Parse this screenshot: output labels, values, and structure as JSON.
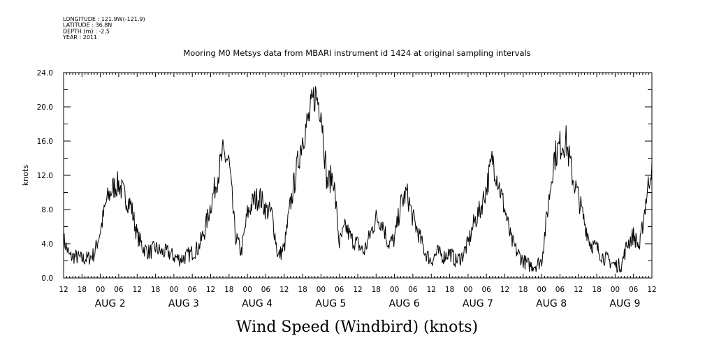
{
  "header": {
    "lines": [
      "LONGITUDE : 121.9W(-121.9)",
      "LATITUDE : 36.8N",
      "DEPTH (m) : -2.5",
      "YEAR : 2011"
    ]
  },
  "colors": {
    "line": "#000000",
    "background": "#ffffff"
  },
  "chart_data": {
    "type": "line",
    "title": "Mooring M0 Metsys data from MBARI instrument id 1424 at original sampling intervals",
    "xlabel": "Wind Speed (Windbird) (knots)",
    "ylabel": "knots",
    "ylim": [
      0,
      24
    ],
    "yticks": [
      "0.0",
      "4.0",
      "8.0",
      "12.0",
      "16.0",
      "20.0",
      "24.0"
    ],
    "x_unit": "hours since AUG 1 12:00 (2011)",
    "xlim": [
      0,
      192
    ],
    "xticks_hours": [
      "12",
      "18",
      "00",
      "06",
      "12",
      "18",
      "00",
      "06",
      "12",
      "18",
      "00",
      "06",
      "12",
      "18",
      "00",
      "06",
      "12",
      "18",
      "00",
      "06",
      "12",
      "18",
      "00",
      "06",
      "12",
      "18",
      "00",
      "06",
      "12",
      "18",
      "00",
      "06",
      "12"
    ],
    "date_labels": [
      "AUG  2",
      "AUG  3",
      "AUG  4",
      "AUG  5",
      "AUG  6",
      "AUG  7",
      "AUG  8",
      "AUG  9"
    ],
    "grid": false,
    "series": [
      {
        "x": [
          0,
          2,
          4,
          6,
          8,
          10,
          12,
          14,
          16,
          18,
          20,
          22,
          24,
          26,
          28,
          30,
          32,
          34,
          36,
          38,
          40,
          42,
          44,
          46,
          48,
          50,
          52,
          54,
          56,
          58,
          60,
          62,
          64,
          66,
          68,
          70,
          72,
          74,
          76,
          78,
          80,
          82,
          84,
          86,
          88,
          90,
          92,
          94,
          96,
          98,
          100,
          102,
          104,
          106,
          108,
          110,
          112,
          114,
          116,
          118,
          120,
          122,
          124,
          126,
          128,
          130,
          132,
          134,
          136,
          138,
          140,
          142,
          144,
          146,
          148,
          150,
          152,
          154,
          156,
          158,
          160,
          162,
          164,
          166,
          168,
          170,
          172,
          174,
          176,
          178,
          180,
          182,
          184,
          186,
          188,
          190,
          192
        ],
        "values": [
          4.5,
          2.5,
          2.5,
          2.2,
          2.3,
          2.8,
          5.5,
          9.0,
          10.5,
          11.0,
          9.5,
          8.5,
          5.0,
          3.5,
          3.0,
          3.5,
          3.0,
          3.0,
          2.5,
          2.2,
          2.5,
          3.0,
          3.5,
          5.5,
          8.5,
          11.5,
          14.5,
          13.5,
          5.0,
          3.0,
          7.5,
          9.0,
          9.5,
          8.0,
          7.5,
          2.5,
          3.5,
          8.5,
          12.5,
          16.5,
          18.5,
          21.5,
          20.0,
          11.0,
          12.0,
          4.0,
          6.0,
          4.5,
          4.0,
          3.0,
          5.0,
          7.0,
          6.5,
          4.0,
          4.5,
          8.5,
          10.0,
          7.0,
          5.0,
          3.0,
          2.0,
          3.0,
          2.5,
          3.0,
          2.0,
          2.5,
          4.0,
          6.5,
          8.0,
          10.5,
          14.0,
          11.0,
          8.0,
          4.5,
          3.0,
          2.0,
          1.5,
          1.5,
          2.0,
          8.0,
          14.0,
          15.5,
          16.0,
          12.0,
          9.5,
          6.5,
          4.0,
          3.5,
          2.5,
          2.0,
          1.5,
          1.5,
          4.0,
          5.0,
          3.5,
          9.0,
          13.5
        ],
        "note": "approximate — extends to AUG 9 12:00"
      }
    ]
  }
}
